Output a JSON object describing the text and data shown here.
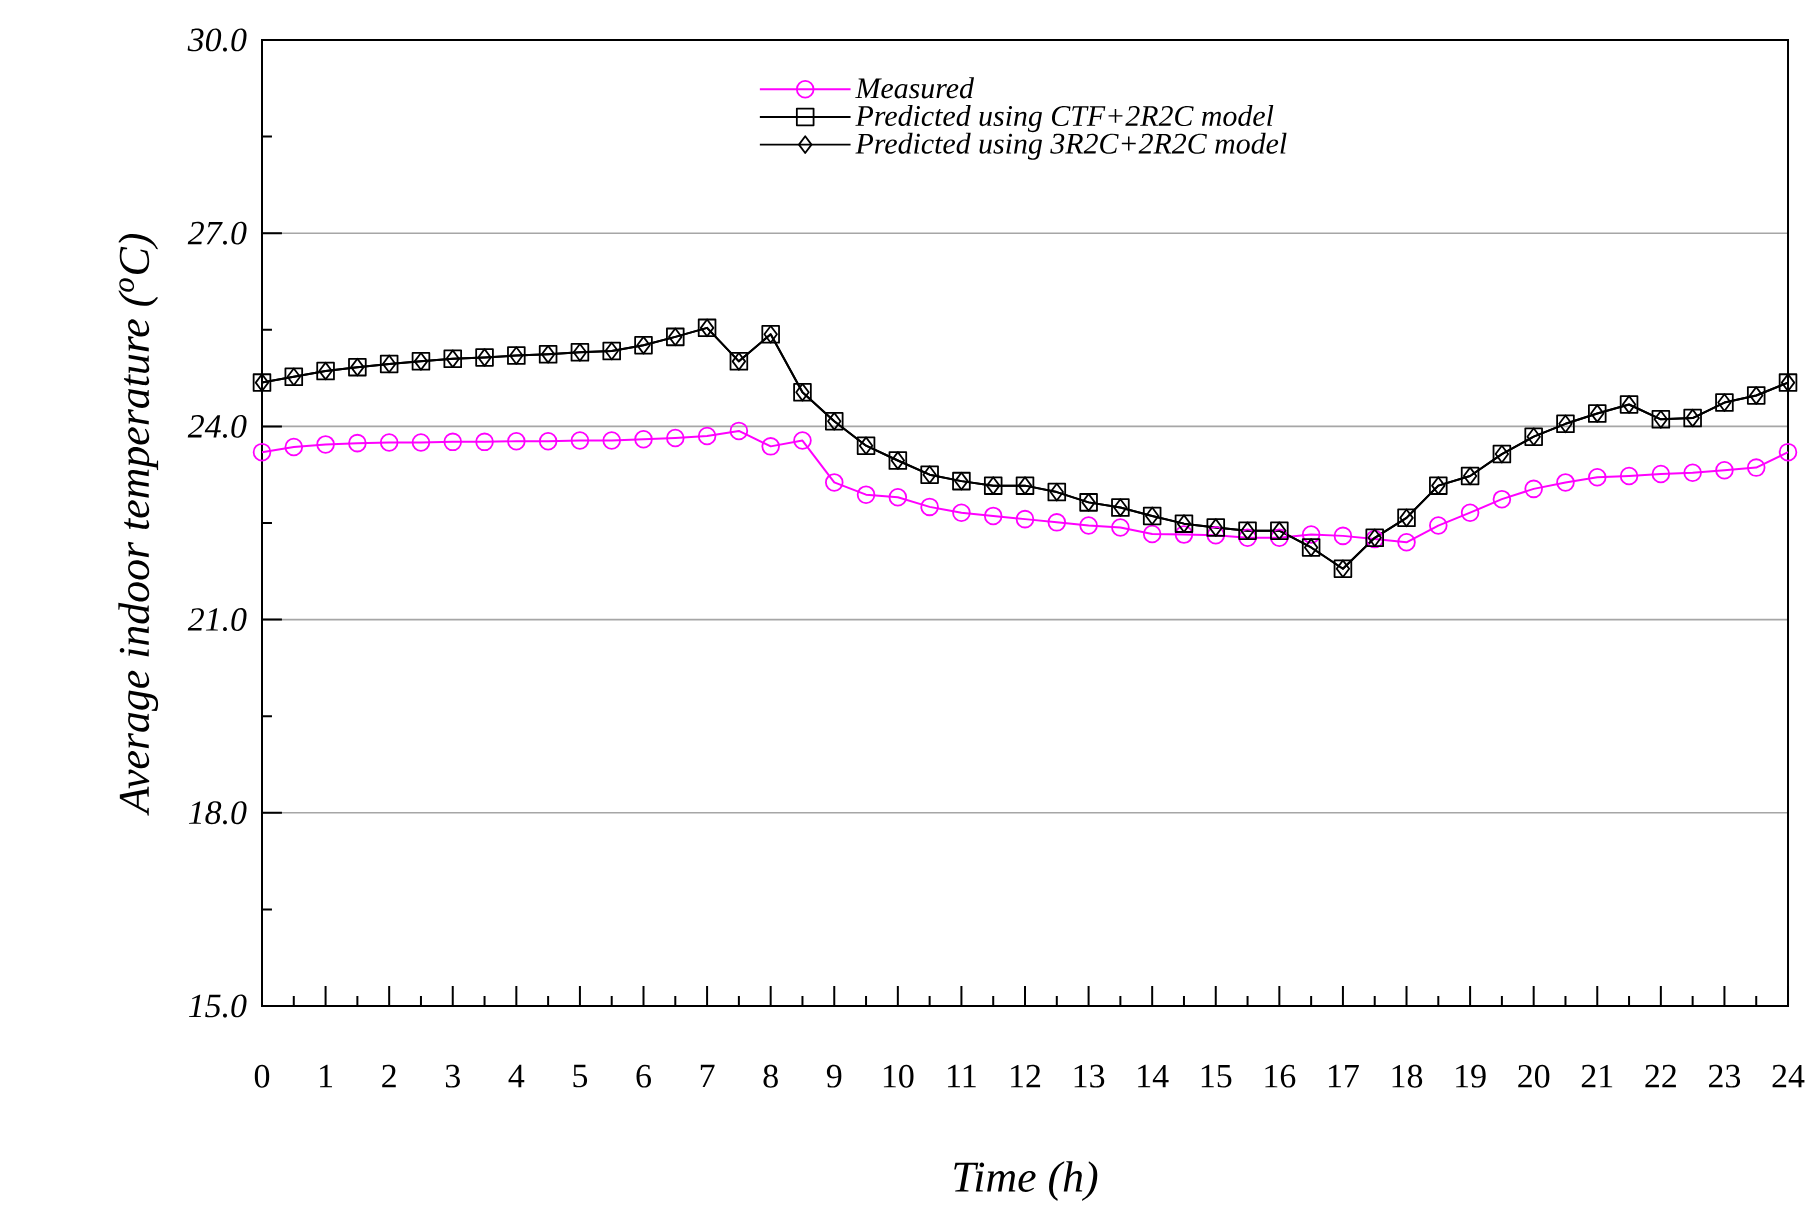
{
  "chart_data": {
    "type": "line",
    "xlabel": "Time (h)",
    "ylabel": "Average indoor temperature ($^{o}$C)",
    "x": [
      0,
      0.5,
      1,
      1.5,
      2,
      2.5,
      3,
      3.5,
      4,
      4.5,
      5,
      5.5,
      6,
      6.5,
      7,
      7.5,
      8,
      8.5,
      9,
      9.5,
      10,
      10.5,
      11,
      11.5,
      12,
      12.5,
      13,
      13.5,
      14,
      14.5,
      15,
      15.5,
      16,
      16.5,
      17,
      17.5,
      18,
      18.5,
      19,
      19.5,
      20,
      20.5,
      21,
      21.5,
      22,
      22.5,
      23,
      23.5,
      24
    ],
    "series": [
      {
        "name": "Measured",
        "color": "#ff00ff",
        "marker": "circle",
        "values": [
          23.6,
          23.68,
          23.72,
          23.74,
          23.75,
          23.75,
          23.76,
          23.76,
          23.77,
          23.77,
          23.78,
          23.78,
          23.8,
          23.82,
          23.85,
          23.93,
          23.69,
          23.78,
          23.13,
          22.94,
          22.9,
          22.75,
          22.66,
          22.61,
          22.56,
          22.51,
          22.46,
          22.43,
          22.33,
          22.32,
          22.31,
          22.27,
          22.27,
          22.32,
          22.3,
          22.25,
          22.2,
          22.46,
          22.66,
          22.87,
          23.03,
          23.13,
          23.21,
          23.23,
          23.26,
          23.28,
          23.32,
          23.36,
          23.6
        ]
      },
      {
        "name": "Predicted using CTF+2R2C model",
        "color": "#000000",
        "marker": "square",
        "values": [
          24.68,
          24.77,
          24.86,
          24.92,
          24.97,
          25.01,
          25.05,
          25.07,
          25.1,
          25.12,
          25.15,
          25.17,
          25.26,
          25.39,
          25.53,
          25.01,
          25.43,
          24.53,
          24.08,
          23.7,
          23.47,
          23.25,
          23.15,
          23.08,
          23.08,
          22.98,
          22.82,
          22.74,
          22.61,
          22.49,
          22.43,
          22.38,
          22.38,
          22.12,
          21.79,
          22.27,
          22.58,
          23.08,
          23.23,
          23.57,
          23.84,
          24.04,
          24.2,
          24.34,
          24.11,
          24.13,
          24.37,
          24.48,
          24.68
        ]
      },
      {
        "name": "Predicted using 3R2C+2R2C model",
        "color": "#000000",
        "marker": "diamond",
        "values": [
          24.68,
          24.77,
          24.86,
          24.92,
          24.97,
          25.01,
          25.05,
          25.07,
          25.1,
          25.12,
          25.15,
          25.17,
          25.26,
          25.39,
          25.53,
          25.01,
          25.43,
          24.53,
          24.08,
          23.7,
          23.47,
          23.25,
          23.15,
          23.08,
          23.08,
          22.98,
          22.82,
          22.74,
          22.61,
          22.49,
          22.43,
          22.38,
          22.38,
          22.12,
          21.79,
          22.27,
          22.58,
          23.08,
          23.23,
          23.57,
          23.84,
          24.04,
          24.2,
          24.34,
          24.11,
          24.13,
          24.37,
          24.48,
          24.68
        ]
      }
    ],
    "xlim": [
      0,
      24
    ],
    "xticks": [
      0,
      1,
      2,
      3,
      4,
      5,
      6,
      7,
      8,
      9,
      10,
      11,
      12,
      13,
      14,
      15,
      16,
      17,
      18,
      19,
      20,
      21,
      22,
      23,
      24
    ],
    "ylim": [
      15,
      30
    ],
    "yticks": [
      {
        "value": 15,
        "label": "15.0"
      },
      {
        "value": 16.5,
        "label": null
      },
      {
        "value": 18,
        "label": "18.0"
      },
      {
        "value": 19.5,
        "label": null
      },
      {
        "value": 21,
        "label": "21.0"
      },
      {
        "value": 22.5,
        "label": null
      },
      {
        "value": 24,
        "label": "24.0"
      },
      {
        "value": 25.5,
        "label": null
      },
      {
        "value": 27,
        "label": "27.0"
      },
      {
        "value": 28.5,
        "label": null
      },
      {
        "value": 30,
        "label": "30.0"
      }
    ],
    "grid": "y",
    "legend": "top",
    "line_style": "solid"
  }
}
